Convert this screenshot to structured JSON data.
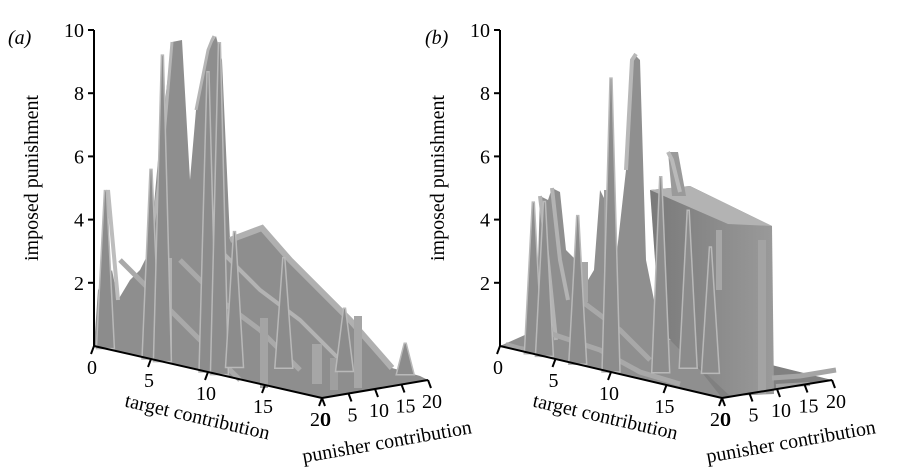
{
  "colors": {
    "surface_fill": "#8c8c8c",
    "surface_light": "#b9b9b9",
    "surface_dark": "#6e6e6e",
    "axis": "#000000",
    "background": "#ffffff"
  },
  "chart_data": [
    {
      "type": "3d-surface",
      "panel_label": "(a)",
      "zlabel": "imposed punishment",
      "xlabel": "target contribution",
      "ylabel": "punisher contribution",
      "zticks": [
        "2",
        "4",
        "6",
        "8",
        "10"
      ],
      "xticks": [
        "0",
        "5",
        "10",
        "15",
        "20"
      ],
      "yticks": [
        "0",
        "5",
        "10",
        "15",
        "20"
      ],
      "zlim": [
        0,
        10
      ],
      "xlim": [
        0,
        20
      ],
      "ylim": [
        0,
        20
      ],
      "grid": false,
      "peaks": [
        {
          "target": 1,
          "punisher": 0,
          "value": 5.0
        },
        {
          "target": 5,
          "punisher": 0,
          "value": 6.0
        },
        {
          "target": 6,
          "punisher": 0,
          "value": 9.7
        },
        {
          "target": 10,
          "punisher": 0,
          "value": 9.5
        },
        {
          "target": 11,
          "punisher": 0,
          "value": 10.5
        },
        {
          "target": 10,
          "punisher": 5,
          "value": 4.3
        },
        {
          "target": 12,
          "punisher": 10,
          "value": 3.5
        },
        {
          "target": 15,
          "punisher": 15,
          "value": 2.0
        },
        {
          "target": 18,
          "punisher": 20,
          "value": 1.0
        }
      ]
    },
    {
      "type": "3d-surface",
      "panel_label": "(b)",
      "zlabel": "imposed punishment",
      "xlabel": "target contribution",
      "ylabel": "punisher contribution",
      "zticks": [
        "2",
        "4",
        "6",
        "8",
        "10"
      ],
      "xticks": [
        "0",
        "5",
        "10",
        "15",
        "20"
      ],
      "yticks": [
        "0",
        "5",
        "10",
        "15",
        "20"
      ],
      "zlim": [
        0,
        10
      ],
      "xlim": [
        0,
        20
      ],
      "ylim": [
        0,
        20
      ],
      "grid": false,
      "peaks": [
        {
          "target": 3,
          "punisher": 0,
          "value": 4.8
        },
        {
          "target": 4,
          "punisher": 0,
          "value": 4.9
        },
        {
          "target": 7,
          "punisher": 0,
          "value": 4.7
        },
        {
          "target": 10,
          "punisher": 0,
          "value": 9.3
        },
        {
          "target": 12,
          "punisher": 5,
          "value": 6.2
        },
        {
          "target": 12,
          "punisher": 10,
          "value": 5.0
        },
        {
          "target": 14,
          "punisher": 10,
          "value": 4.0
        }
      ]
    }
  ]
}
